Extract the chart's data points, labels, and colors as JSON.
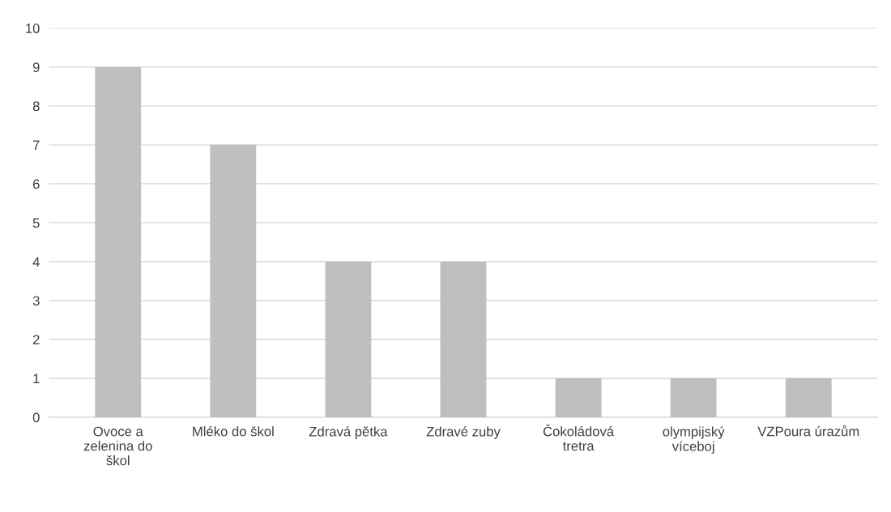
{
  "chart_data": {
    "type": "bar",
    "categories": [
      "Ovoce a zelenina do škol",
      "Mléko do škol",
      "Zdravá pětka",
      "Zdravé zuby",
      "Čokoládová tretra",
      "olympijský víceboj",
      "VZPoura úrazům"
    ],
    "values": [
      9,
      7,
      4,
      4,
      1,
      1,
      1
    ],
    "color": "#bfbfbf",
    "ylim": [
      0,
      10
    ],
    "yticks": [
      0,
      1,
      2,
      3,
      4,
      5,
      6,
      7,
      8,
      9,
      10
    ],
    "grid": "y",
    "legend": false
  }
}
